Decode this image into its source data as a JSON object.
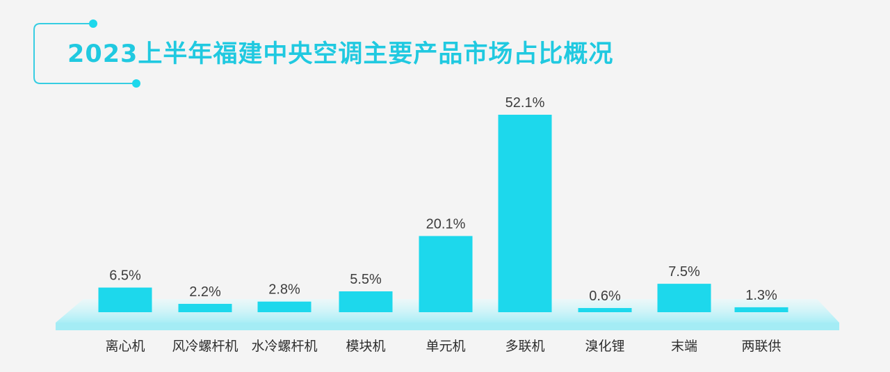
{
  "title": "2023上半年福建中央空调主要产品市场占比概况",
  "colors": {
    "accent": "#1dd8ec",
    "title": "#20c9e0",
    "platform": "#bff2f8",
    "background": "#f4f4f4"
  },
  "chart_data": {
    "type": "bar",
    "title": "2023上半年福建中央空调主要产品市场占比概况",
    "categories": [
      "离心机",
      "风冷螺杆机",
      "水冷螺杆机",
      "模块机",
      "单元机",
      "多联机",
      "溴化锂",
      "末端",
      "两联供"
    ],
    "values": [
      6.5,
      2.2,
      2.8,
      5.5,
      20.1,
      52.1,
      0.6,
      7.5,
      1.3
    ],
    "value_labels": [
      "6.5%",
      "2.2%",
      "2.8%",
      "5.5%",
      "20.1%",
      "52.1%",
      "0.6%",
      "7.5%",
      "1.3%"
    ],
    "unit": "%",
    "xlabel": "",
    "ylabel": "",
    "ylim": [
      0,
      52.1
    ],
    "grid": false,
    "legend": "none"
  }
}
